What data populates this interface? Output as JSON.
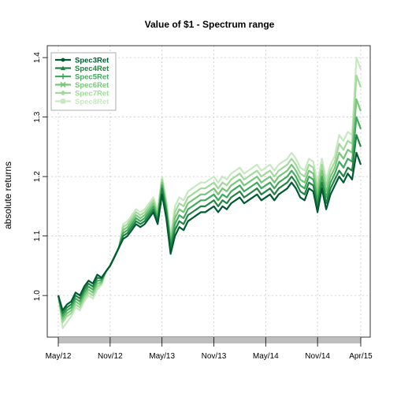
{
  "chart_data": {
    "type": "line",
    "title": "Value of $1 - Spectrum range",
    "xlabel": "",
    "ylabel": "absolute returns",
    "x_range": [
      0,
      35.5
    ],
    "ylim": [
      0.93,
      1.42
    ],
    "x_ticks": [
      {
        "label": "May/12",
        "x": 0
      },
      {
        "label": "Nov/12",
        "x": 6
      },
      {
        "label": "May/13",
        "x": 12
      },
      {
        "label": "Nov/13",
        "x": 18
      },
      {
        "label": "May/14",
        "x": 24
      },
      {
        "label": "Nov/14",
        "x": 30
      },
      {
        "label": "Apr/15",
        "x": 35
      }
    ],
    "y_ticks": [
      1.0,
      1.1,
      1.2,
      1.3,
      1.4
    ],
    "grid": true,
    "legend_position": "top-left",
    "x": [
      0,
      0.5,
      1,
      1.5,
      2,
      2.5,
      3,
      3.5,
      4,
      4.5,
      5,
      5.5,
      6,
      6.5,
      7,
      7.5,
      8,
      8.5,
      9,
      9.5,
      10,
      10.5,
      11,
      11.5,
      12,
      12.5,
      13,
      13.5,
      14,
      14.5,
      15,
      15.5,
      16,
      16.5,
      17,
      17.5,
      18,
      18.5,
      19,
      19.5,
      20,
      20.5,
      21,
      21.5,
      22,
      22.5,
      23,
      23.5,
      24,
      24.5,
      25,
      25.5,
      26,
      26.5,
      27,
      27.5,
      28,
      28.5,
      29,
      29.5,
      30,
      30.5,
      31,
      31.5,
      32,
      32.5,
      33,
      33.5,
      34,
      34.5,
      35
    ],
    "series": [
      {
        "name": "Spec3Ret",
        "color": "#005a32",
        "marker": "circle",
        "values": [
          1.0,
          0.975,
          0.985,
          0.99,
          1.005,
          1.0,
          1.015,
          1.025,
          1.02,
          1.035,
          1.03,
          1.04,
          1.05,
          1.065,
          1.08,
          1.095,
          1.1,
          1.11,
          1.12,
          1.115,
          1.12,
          1.13,
          1.14,
          1.12,
          1.17,
          1.13,
          1.07,
          1.1,
          1.115,
          1.11,
          1.125,
          1.13,
          1.135,
          1.14,
          1.14,
          1.145,
          1.15,
          1.14,
          1.15,
          1.145,
          1.155,
          1.16,
          1.165,
          1.155,
          1.16,
          1.165,
          1.17,
          1.16,
          1.165,
          1.17,
          1.16,
          1.17,
          1.175,
          1.18,
          1.19,
          1.18,
          1.165,
          1.16,
          1.18,
          1.175,
          1.14,
          1.18,
          1.145,
          1.17,
          1.185,
          1.2,
          1.19,
          1.205,
          1.195,
          1.24,
          1.22
        ]
      },
      {
        "name": "Spec4Ret",
        "color": "#238443",
        "marker": "triangle",
        "values": [
          1.0,
          0.97,
          0.98,
          0.985,
          1.0,
          0.995,
          1.01,
          1.02,
          1.015,
          1.03,
          1.028,
          1.04,
          1.05,
          1.065,
          1.08,
          1.1,
          1.105,
          1.115,
          1.125,
          1.12,
          1.125,
          1.135,
          1.145,
          1.125,
          1.18,
          1.14,
          1.08,
          1.11,
          1.125,
          1.12,
          1.135,
          1.14,
          1.145,
          1.15,
          1.15,
          1.155,
          1.16,
          1.15,
          1.16,
          1.155,
          1.165,
          1.17,
          1.175,
          1.165,
          1.17,
          1.175,
          1.18,
          1.17,
          1.175,
          1.18,
          1.17,
          1.18,
          1.185,
          1.19,
          1.2,
          1.19,
          1.175,
          1.17,
          1.19,
          1.185,
          1.15,
          1.19,
          1.155,
          1.18,
          1.195,
          1.21,
          1.2,
          1.215,
          1.21,
          1.27,
          1.25
        ]
      },
      {
        "name": "Spec5Ret",
        "color": "#41ab5d",
        "marker": "plus",
        "values": [
          1.0,
          0.965,
          0.975,
          0.98,
          0.995,
          0.99,
          1.005,
          1.015,
          1.01,
          1.025,
          1.025,
          1.04,
          1.05,
          1.065,
          1.08,
          1.105,
          1.11,
          1.12,
          1.13,
          1.125,
          1.13,
          1.14,
          1.15,
          1.13,
          1.185,
          1.145,
          1.085,
          1.12,
          1.135,
          1.13,
          1.145,
          1.15,
          1.155,
          1.16,
          1.16,
          1.165,
          1.17,
          1.16,
          1.17,
          1.165,
          1.175,
          1.18,
          1.185,
          1.175,
          1.18,
          1.185,
          1.19,
          1.18,
          1.185,
          1.19,
          1.18,
          1.19,
          1.195,
          1.2,
          1.21,
          1.2,
          1.185,
          1.18,
          1.2,
          1.195,
          1.16,
          1.2,
          1.165,
          1.19,
          1.205,
          1.225,
          1.215,
          1.23,
          1.225,
          1.3,
          1.28
        ]
      },
      {
        "name": "Spec6Ret",
        "color": "#78c679",
        "marker": "x",
        "values": [
          1.0,
          0.96,
          0.97,
          0.975,
          0.99,
          0.985,
          1.0,
          1.01,
          1.005,
          1.02,
          1.022,
          1.04,
          1.05,
          1.065,
          1.08,
          1.11,
          1.115,
          1.125,
          1.135,
          1.13,
          1.135,
          1.145,
          1.155,
          1.135,
          1.19,
          1.15,
          1.09,
          1.13,
          1.145,
          1.14,
          1.155,
          1.16,
          1.165,
          1.17,
          1.17,
          1.175,
          1.18,
          1.17,
          1.18,
          1.175,
          1.185,
          1.19,
          1.195,
          1.185,
          1.19,
          1.195,
          1.2,
          1.19,
          1.195,
          1.2,
          1.19,
          1.2,
          1.205,
          1.21,
          1.22,
          1.21,
          1.195,
          1.19,
          1.21,
          1.205,
          1.17,
          1.21,
          1.175,
          1.2,
          1.215,
          1.24,
          1.23,
          1.245,
          1.24,
          1.33,
          1.31
        ]
      },
      {
        "name": "Spec7Ret",
        "color": "#a1d99b",
        "marker": "diamond",
        "values": [
          1.0,
          0.955,
          0.965,
          0.97,
          0.985,
          0.98,
          0.995,
          1.005,
          1.0,
          1.015,
          1.02,
          1.04,
          1.05,
          1.065,
          1.08,
          1.115,
          1.12,
          1.13,
          1.14,
          1.135,
          1.14,
          1.15,
          1.16,
          1.14,
          1.195,
          1.155,
          1.095,
          1.14,
          1.155,
          1.15,
          1.165,
          1.17,
          1.175,
          1.18,
          1.18,
          1.185,
          1.19,
          1.18,
          1.19,
          1.185,
          1.195,
          1.2,
          1.205,
          1.195,
          1.2,
          1.205,
          1.21,
          1.2,
          1.205,
          1.21,
          1.2,
          1.21,
          1.215,
          1.22,
          1.23,
          1.22,
          1.205,
          1.2,
          1.22,
          1.215,
          1.18,
          1.22,
          1.185,
          1.21,
          1.225,
          1.255,
          1.245,
          1.26,
          1.255,
          1.37,
          1.35
        ]
      },
      {
        "name": "Spec8Ret",
        "color": "#c7e9c0",
        "marker": "square",
        "values": [
          1.0,
          0.945,
          0.955,
          0.965,
          0.98,
          0.975,
          0.99,
          1.0,
          0.995,
          1.01,
          1.018,
          1.04,
          1.05,
          1.065,
          1.08,
          1.12,
          1.125,
          1.135,
          1.145,
          1.14,
          1.145,
          1.155,
          1.165,
          1.145,
          1.2,
          1.16,
          1.1,
          1.15,
          1.165,
          1.16,
          1.175,
          1.18,
          1.185,
          1.19,
          1.19,
          1.195,
          1.2,
          1.19,
          1.2,
          1.195,
          1.205,
          1.21,
          1.215,
          1.205,
          1.21,
          1.215,
          1.22,
          1.21,
          1.215,
          1.22,
          1.21,
          1.22,
          1.225,
          1.23,
          1.24,
          1.23,
          1.215,
          1.21,
          1.23,
          1.225,
          1.19,
          1.23,
          1.195,
          1.22,
          1.235,
          1.27,
          1.26,
          1.275,
          1.27,
          1.4,
          1.38
        ]
      }
    ]
  }
}
